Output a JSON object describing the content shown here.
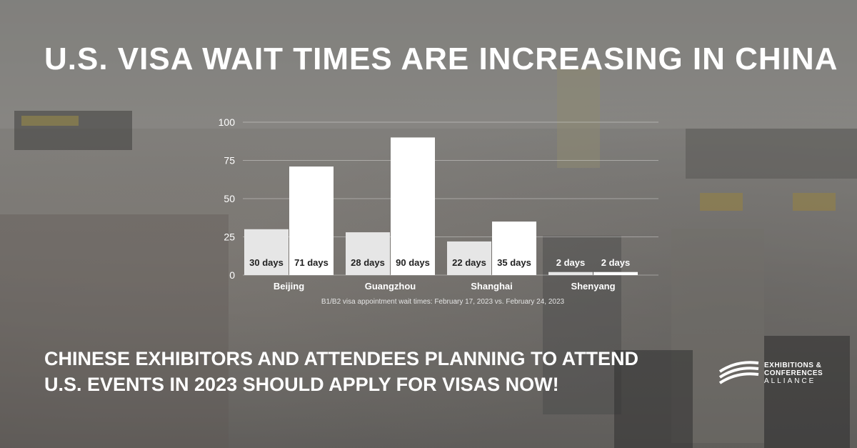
{
  "title": "U.S. VISA WAIT TIMES ARE INCREASING IN CHINA",
  "subtitle_lines": [
    "CHINESE EXHIBITORS AND ATTENDEES PLANNING TO ATTEND",
    "U.S. EVENTS IN 2023 SHOULD APPLY FOR VISAS NOW!"
  ],
  "caption": "B1/B2 visa appointment wait times: February 17, 2023 vs. February 24, 2023",
  "logo": {
    "line1": "EXHIBITIONS &",
    "line2": "CONFERENCES",
    "line3": "ALLIANCE"
  },
  "colors": {
    "bar_feb17": "#e6e6e6",
    "bar_feb24": "#ffffff",
    "text": "#ffffff",
    "label_text": "#222222"
  },
  "chart_data": {
    "type": "bar",
    "categories": [
      "Beijing",
      "Guangzhou",
      "Shanghai",
      "Shenyang"
    ],
    "series": [
      {
        "values": [
          30,
          28,
          22,
          2
        ],
        "labels": [
          "30 days",
          "28 days",
          "22 days",
          "2 days"
        ]
      },
      {
        "values": [
          71,
          90,
          35,
          2
        ],
        "labels": [
          "71 days",
          "90 days",
          "35 days",
          "2 days"
        ]
      }
    ],
    "yticks": [
      0,
      25,
      50,
      75,
      100
    ],
    "ylim": [
      0,
      100
    ],
    "grid": true
  }
}
